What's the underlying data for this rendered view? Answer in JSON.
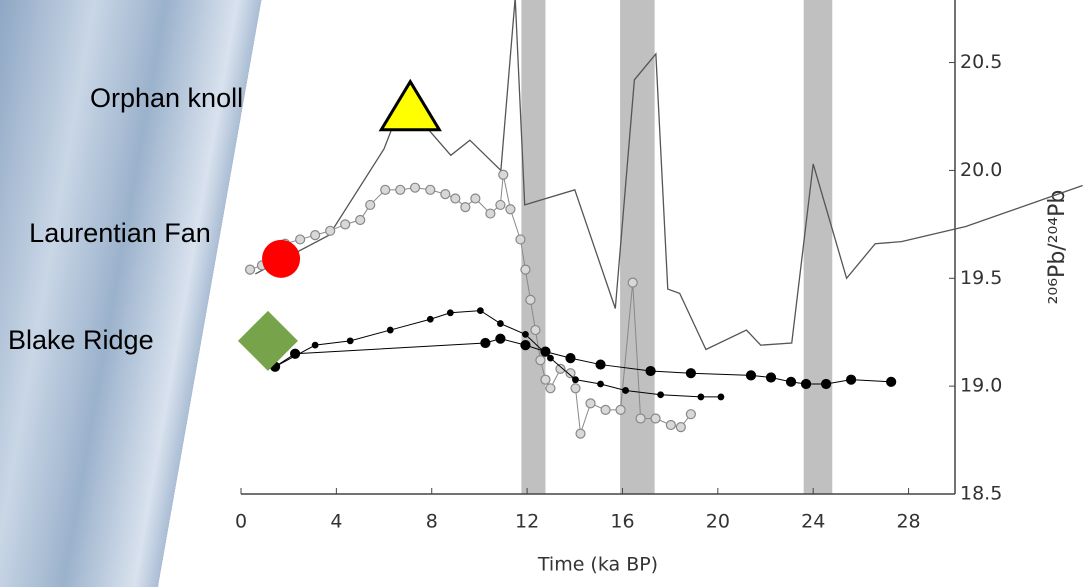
{
  "chart_data": {
    "type": "line",
    "x_label": "Time (ka BP)",
    "y_label": "²⁰⁶Pb/²⁰⁴Pb",
    "xlim": [
      0,
      35.4
    ],
    "ylim": [
      18.5,
      20.79
    ],
    "xticks": [
      0,
      4,
      8,
      12,
      16,
      20,
      24,
      28
    ],
    "yticks": [
      18.5,
      {
        "value": 19,
        "label": "19.0"
      },
      19.5,
      {
        "value": 20,
        "label": "20.0"
      },
      20.5
    ],
    "bands": [
      [
        11.76,
        12.77
      ],
      [
        15.9,
        17.35
      ],
      [
        23.6,
        24.8
      ]
    ],
    "band_color": "#c0c0c0",
    "series": [
      {
        "style": "line",
        "color": "#555555",
        "x": [
          0.6,
          3.7,
          6.0,
          6.7,
          7.7,
          8.8,
          9.6,
          10.9,
          11.5,
          11.9,
          14.0,
          15.7,
          16.5,
          17.4,
          17.9,
          18.4,
          19.5,
          21.2,
          21.8,
          23.1,
          24.0,
          25.4,
          26.6,
          27.7,
          30.4,
          35.3
        ],
        "values": [
          19.52,
          19.7,
          20.1,
          20.3,
          20.21,
          20.07,
          20.14,
          20.0,
          20.8,
          19.84,
          19.91,
          19.36,
          20.42,
          20.54,
          19.45,
          19.43,
          19.17,
          19.26,
          19.19,
          19.2,
          20.03,
          19.5,
          19.66,
          19.67,
          19.74,
          19.93
        ]
      },
      {
        "style": "open-circles",
        "color": "#888888",
        "x": [
          0.38,
          0.88,
          1.43,
          1.85,
          2.48,
          3.11,
          3.74,
          4.37,
          5.0,
          5.42,
          6.05,
          6.68,
          7.3,
          7.94,
          8.57,
          8.99,
          9.41,
          9.83,
          10.46,
          10.88,
          11.0,
          11.3,
          11.72,
          11.93,
          12.14,
          12.35,
          12.56,
          12.77,
          12.98,
          13.4,
          13.82,
          14.03,
          14.24,
          14.66,
          15.29,
          15.92,
          16.43,
          16.76,
          17.39,
          18.03,
          18.45,
          18.87
        ],
        "values": [
          19.54,
          19.56,
          19.62,
          19.66,
          19.68,
          19.7,
          19.72,
          19.75,
          19.77,
          19.84,
          19.91,
          19.91,
          19.92,
          19.91,
          19.89,
          19.87,
          19.83,
          19.87,
          19.8,
          19.84,
          19.98,
          19.82,
          19.68,
          19.54,
          19.4,
          19.26,
          19.12,
          19.03,
          18.99,
          19.08,
          19.06,
          18.99,
          18.78,
          18.92,
          18.89,
          18.89,
          19.48,
          18.85,
          18.85,
          18.82,
          18.81,
          18.87
        ]
      },
      {
        "style": "large-dots",
        "color": "#000000",
        "x": [
          1.43,
          2.27,
          10.25,
          10.88,
          11.93,
          12.77,
          13.82,
          15.08,
          17.18,
          18.87,
          21.39,
          22.23,
          23.07,
          23.7,
          24.54,
          25.59,
          27.27
        ],
        "values": [
          19.09,
          19.15,
          19.2,
          19.22,
          19.19,
          19.16,
          19.13,
          19.1,
          19.07,
          19.06,
          19.05,
          19.04,
          19.02,
          19.01,
          19.01,
          19.03,
          19.02
        ]
      },
      {
        "style": "small-dots",
        "color": "#000000",
        "x": [
          1.43,
          3.11,
          4.58,
          6.26,
          7.94,
          8.78,
          10.04,
          10.88,
          11.93,
          12.98,
          14.03,
          15.08,
          16.13,
          17.6,
          19.29,
          20.13
        ],
        "values": [
          19.09,
          19.19,
          19.21,
          19.26,
          19.31,
          19.34,
          19.35,
          19.29,
          19.24,
          19.13,
          19.03,
          19.01,
          18.98,
          18.96,
          18.95,
          18.95
        ]
      }
    ],
    "annotations": [
      {
        "text": "Orphan knoll",
        "shape": "triangle",
        "color": "#ffff00",
        "x": 7.1,
        "y": 20.3
      },
      {
        "text": "Laurentian Fan",
        "shape": "circle",
        "color": "#ff0000",
        "x": 1.68,
        "y": 19.59
      },
      {
        "text": "Blake Ridge",
        "shape": "diamond",
        "color": "#77a34a",
        "x": 1.13,
        "y": 19.21
      }
    ]
  }
}
